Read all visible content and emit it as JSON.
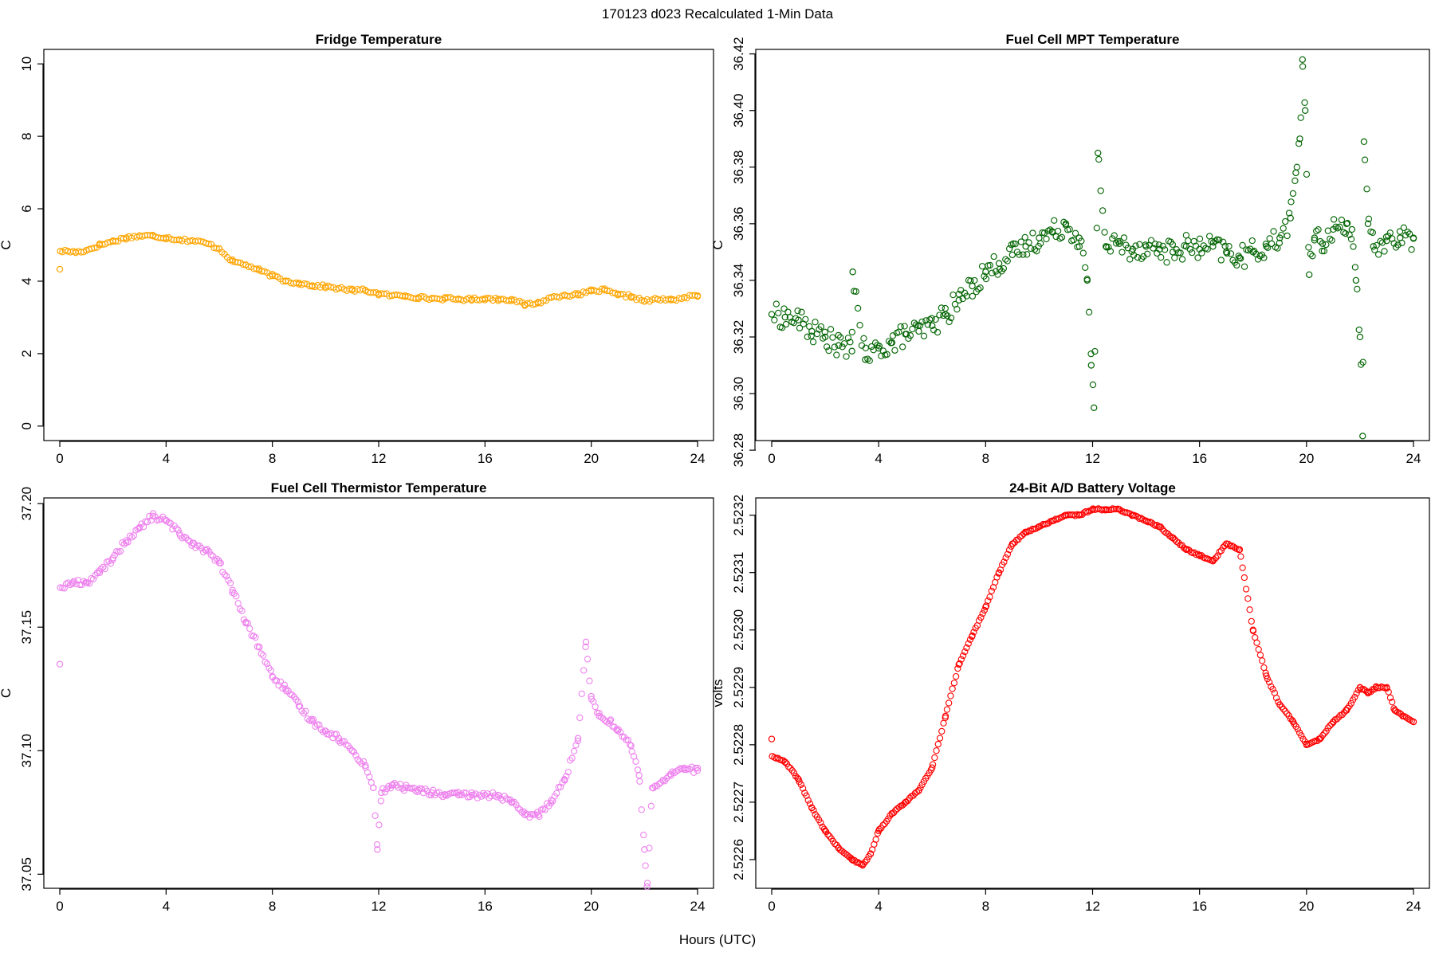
{
  "page": {
    "title": "170123   d023   Recalculated 1-Min Data",
    "xlabel": "Hours (UTC)"
  },
  "chart_data": [
    {
      "id": "fridge",
      "type": "scatter",
      "title": "Fridge Temperature",
      "xlabel": "Hours (UTC)",
      "ylabel": "C",
      "color": "#FFA500",
      "xlim": [
        0,
        24
      ],
      "ylim": [
        -0.4,
        10.4
      ],
      "xticks": [
        0,
        4,
        8,
        12,
        16,
        20,
        24
      ],
      "yticks": [
        0,
        2,
        4,
        6,
        8,
        10
      ],
      "ytick_labels": [
        "0",
        "2",
        "4",
        "6",
        "8",
        "10"
      ],
      "x": [
        0,
        0.02,
        0.3,
        0.6,
        1,
        1.5,
        2,
        2.5,
        3,
        3.5,
        4,
        4.5,
        5,
        5.5,
        6,
        6.5,
        7,
        7.5,
        8,
        8.5,
        9,
        9.5,
        10,
        10.5,
        11,
        11.5,
        12,
        12.5,
        13,
        13.5,
        14,
        14.5,
        15,
        15.5,
        16,
        16.5,
        17,
        17.5,
        18,
        18.5,
        19,
        19.5,
        20,
        20.5,
        21,
        21.5,
        22,
        22.5,
        23,
        23.5,
        24
      ],
      "y": [
        4.33,
        4.83,
        4.83,
        4.8,
        4.85,
        5.0,
        5.1,
        5.2,
        5.25,
        5.25,
        5.2,
        5.15,
        5.12,
        5.05,
        4.9,
        4.55,
        4.45,
        4.3,
        4.15,
        4.0,
        3.95,
        3.88,
        3.85,
        3.8,
        3.75,
        3.75,
        3.65,
        3.6,
        3.6,
        3.55,
        3.52,
        3.52,
        3.5,
        3.5,
        3.52,
        3.5,
        3.5,
        3.35,
        3.4,
        3.55,
        3.62,
        3.62,
        3.73,
        3.75,
        3.62,
        3.58,
        3.45,
        3.5,
        3.48,
        3.55,
        3.6
      ]
    },
    {
      "id": "mpt",
      "type": "scatter",
      "title": "Fuel Cell MPT Temperature",
      "xlabel": "Hours (UTC)",
      "ylabel": "C",
      "color": "#006400",
      "xlim": [
        0,
        24
      ],
      "ylim": [
        36.2834,
        36.4216
      ],
      "xticks": [
        0,
        4,
        8,
        12,
        16,
        20,
        24
      ],
      "yticks": [
        36.28,
        36.3,
        36.32,
        36.34,
        36.36,
        36.38,
        36.4,
        36.42
      ],
      "ytick_labels": [
        "36.28",
        "36.30",
        "36.32",
        "36.34",
        "36.36",
        "36.38",
        "36.40",
        "36.42"
      ],
      "x": [
        0,
        0.5,
        1,
        1.5,
        2,
        2.5,
        3,
        3.03,
        3.5,
        4,
        4.5,
        5,
        5.5,
        6,
        6.5,
        7,
        7.5,
        8,
        8.5,
        9,
        9.5,
        10,
        10.5,
        11,
        11.5,
        11.8,
        11.95,
        12.05,
        12.2,
        12.5,
        13,
        13.5,
        14,
        14.5,
        15,
        15.5,
        16,
        16.5,
        17,
        17.5,
        18,
        18.5,
        19,
        19.4,
        19.6,
        19.75,
        19.85,
        19.95,
        20.1,
        20.3,
        20.6,
        21,
        21.5,
        21.7,
        21.85,
        22.0,
        22.1,
        22.15,
        22.3,
        22.5,
        23,
        23.5,
        24
      ],
      "y": [
        36.328,
        36.327,
        36.326,
        36.322,
        36.32,
        36.317,
        36.315,
        36.343,
        36.312,
        36.316,
        36.318,
        36.321,
        36.322,
        36.324,
        36.328,
        36.333,
        36.338,
        36.343,
        36.346,
        36.349,
        36.352,
        36.355,
        36.357,
        36.36,
        36.355,
        36.34,
        36.31,
        36.295,
        36.385,
        36.352,
        36.353,
        36.351,
        36.352,
        36.351,
        36.35,
        36.352,
        36.351,
        36.352,
        36.35,
        36.348,
        36.35,
        36.352,
        36.355,
        36.362,
        36.378,
        36.39,
        36.418,
        36.4,
        36.342,
        36.355,
        36.353,
        36.358,
        36.36,
        36.358,
        36.34,
        36.32,
        36.285,
        36.389,
        36.36,
        36.352,
        36.354,
        36.355,
        36.355
      ]
    },
    {
      "id": "thermistor",
      "type": "scatter",
      "title": "Fuel Cell Thermistor Temperature",
      "xlabel": "Hours (UTC)",
      "ylabel": "C",
      "color": "#EE82EE",
      "xlim": [
        0,
        24
      ],
      "ylim": [
        37.0443,
        37.2023
      ],
      "xticks": [
        0,
        4,
        8,
        12,
        16,
        20,
        24
      ],
      "yticks": [
        37.05,
        37.1,
        37.15,
        37.2
      ],
      "ytick_labels": [
        "37.05",
        "37.10",
        "37.15",
        "37.20"
      ],
      "x": [
        0,
        0.02,
        0.5,
        1,
        1.5,
        2,
        2.5,
        3,
        3.5,
        4,
        4.5,
        5,
        5.5,
        6,
        6.5,
        7,
        7.5,
        8,
        8.5,
        9,
        9.5,
        10,
        10.5,
        11,
        11.5,
        11.8,
        11.95,
        12.1,
        12.5,
        13,
        13.5,
        14,
        14.5,
        15,
        15.5,
        16,
        16.5,
        17,
        17.5,
        18,
        18.5,
        19,
        19.5,
        19.8,
        20.0,
        20.3,
        20.7,
        21,
        21.5,
        21.8,
        22.0,
        22.1,
        22.3,
        22.7,
        23,
        23.5,
        24
      ],
      "y": [
        37.135,
        37.166,
        37.168,
        37.168,
        37.172,
        37.178,
        37.185,
        37.19,
        37.195,
        37.193,
        37.188,
        37.184,
        37.181,
        37.176,
        37.165,
        37.152,
        37.142,
        37.13,
        37.125,
        37.118,
        37.112,
        37.108,
        37.105,
        37.1,
        37.094,
        37.085,
        37.06,
        37.083,
        37.086,
        37.085,
        37.084,
        37.083,
        37.082,
        37.082,
        37.082,
        37.082,
        37.082,
        37.079,
        37.074,
        37.074,
        37.08,
        37.088,
        37.105,
        37.144,
        37.122,
        37.114,
        37.112,
        37.108,
        37.102,
        37.09,
        37.06,
        37.045,
        37.085,
        37.088,
        37.09,
        37.093,
        37.092
      ]
    },
    {
      "id": "battery",
      "type": "scatter",
      "title": "24-Bit A/D Battery Voltage",
      "xlabel": "Hours (UTC)",
      "ylabel": "volts",
      "color": "#FF0000",
      "xlim": [
        0,
        24
      ],
      "ylim": [
        2.52255,
        2.52323
      ],
      "xticks": [
        0,
        4,
        8,
        12,
        16,
        20,
        24
      ],
      "yticks": [
        2.5226,
        2.5227,
        2.5228,
        2.5229,
        2.523,
        2.5231,
        2.5232
      ],
      "ytick_labels": [
        "2.5226",
        "2.5227",
        "2.5228",
        "2.5229",
        "2.5230",
        "2.5231",
        "2.5232"
      ],
      "x": [
        0,
        0.02,
        0.5,
        1,
        1.5,
        2,
        2.5,
        3,
        3.4,
        3.7,
        4,
        4.5,
        5,
        5.5,
        6,
        6.5,
        7,
        7.5,
        8,
        8.5,
        9,
        9.5,
        10,
        10.5,
        11,
        11.5,
        12,
        12.5,
        13,
        13.5,
        14,
        14.5,
        15,
        15.5,
        16,
        16.5,
        17,
        17.5,
        18,
        18.5,
        19,
        19.5,
        20,
        20.5,
        21,
        21.5,
        22,
        22.3,
        22.6,
        23,
        23.3,
        23.6,
        24
      ],
      "y": [
        2.52281,
        2.52278,
        2.52277,
        2.52274,
        2.52269,
        2.52265,
        2.52262,
        2.5226,
        2.52259,
        2.52261,
        2.52265,
        2.52268,
        2.5227,
        2.52272,
        2.52276,
        2.52285,
        2.52294,
        2.52299,
        2.52304,
        2.5231,
        2.52315,
        2.52317,
        2.52318,
        2.52319,
        2.5232,
        2.5232,
        2.52321,
        2.52321,
        2.52321,
        2.5232,
        2.52319,
        2.52318,
        2.52316,
        2.52314,
        2.52313,
        2.52312,
        2.52315,
        2.52314,
        2.523,
        2.52292,
        2.52287,
        2.52284,
        2.5228,
        2.52281,
        2.52284,
        2.52286,
        2.5229,
        2.52289,
        2.5229,
        2.5229,
        2.52286,
        2.52285,
        2.52284
      ]
    }
  ]
}
